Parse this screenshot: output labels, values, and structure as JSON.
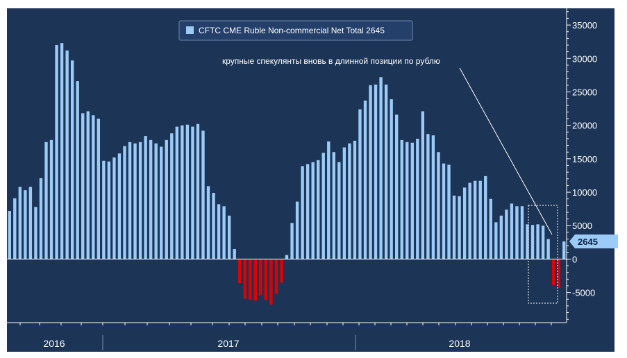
{
  "colors": {
    "background": "#1c3456",
    "positive_bar": "#9ccbf7",
    "negative_bar": "#e00000",
    "axis": "#ffffff",
    "highlight_box": "#ffffff",
    "last_value_tag": "#9ccbf7"
  },
  "chart_data": {
    "type": "bar",
    "legend": "CFTC CME Ruble Non-commercial Net Total 2645",
    "annotation": "крупные спекулянты вновь в длинной позиции по рублю",
    "last_value_label": "2645",
    "y_ticks": [
      "35000",
      "30000",
      "25000",
      "20000",
      "15000",
      "10000",
      "5000",
      "0",
      "-5000"
    ],
    "ylim": [
      -9500,
      37500
    ],
    "x_labels": [
      "2016",
      "2017",
      "2018"
    ],
    "legend_position": "top-center",
    "grid": false,
    "values": [
      7200,
      9100,
      10800,
      10300,
      10800,
      7800,
      12100,
      17500,
      17800,
      32000,
      32300,
      31200,
      29700,
      26600,
      21800,
      22100,
      21500,
      21000,
      14700,
      14600,
      15200,
      15800,
      16900,
      17500,
      17300,
      17500,
      18400,
      17800,
      17300,
      16800,
      17800,
      18800,
      19800,
      20000,
      20100,
      19800,
      20200,
      19200,
      10900,
      9900,
      8200,
      7900,
      6500,
      1500,
      -3600,
      -5900,
      -6100,
      -6200,
      -5400,
      -6100,
      -6800,
      -5200,
      -3500,
      600,
      5400,
      8600,
      13900,
      14200,
      14500,
      14800,
      15900,
      17600,
      16000,
      14500,
      16700,
      17300,
      17700,
      22400,
      23700,
      26000,
      26100,
      27200,
      26100,
      23900,
      21600,
      17800,
      17500,
      17400,
      18000,
      22100,
      18700,
      18500,
      16000,
      14300,
      14100,
      9500,
      9400,
      10700,
      11400,
      11700,
      11700,
      12400,
      9000,
      5500,
      6500,
      7400,
      8300,
      7900,
      7900,
      5200,
      5100,
      5200,
      5000,
      3000,
      -3900,
      -4300,
      2645
    ]
  }
}
